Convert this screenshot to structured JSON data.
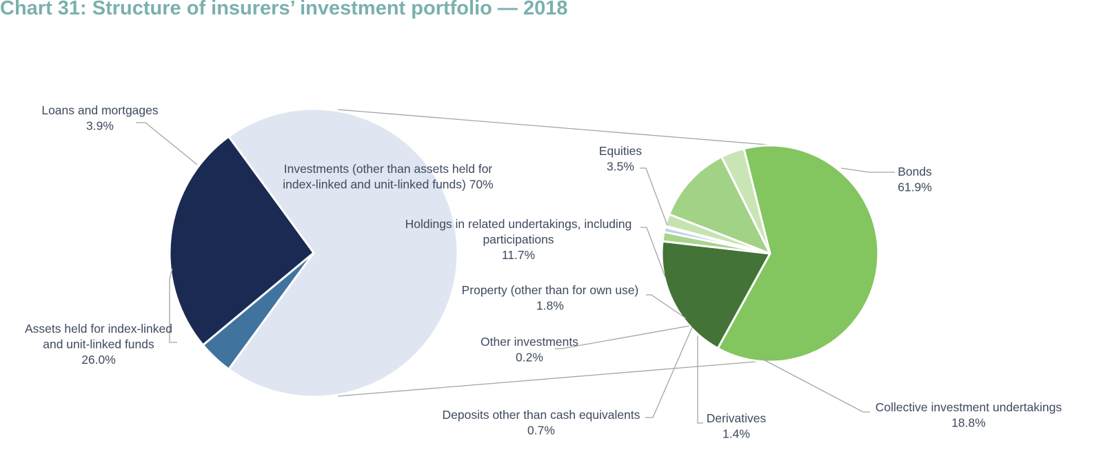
{
  "title": "Chart 31: Structure of insurers’ investment portfolio — 2018",
  "chart_data": [
    {
      "type": "pie",
      "name": "",
      "slices": [
        {
          "label_lines": [
            "Investments (other than assets held for",
            "index-linked and unit-linked funds)  70%"
          ],
          "value": 70.0,
          "color": "#dfe6f1"
        },
        {
          "label_lines": [
            "Assets held for index-linked",
            "and unit-linked funds",
            "26.0%"
          ],
          "value": 26.0,
          "color": "#1a2a52"
        },
        {
          "label_lines": [
            "Loans and mortgages",
            "3.9%"
          ],
          "value": 3.9,
          "color": "#41739f"
        }
      ]
    },
    {
      "type": "pie",
      "name": "",
      "slices": [
        {
          "label_lines": [
            "Bonds",
            "61.9%"
          ],
          "value": 61.9,
          "color": "#83c55f"
        },
        {
          "label_lines": [
            "Collective investment undertakings",
            "18.8%"
          ],
          "value": 18.8,
          "color": "#437336"
        },
        {
          "label_lines": [
            "Derivatives",
            "1.4%"
          ],
          "value": 1.4,
          "color": "#a8d48d"
        },
        {
          "label_lines": [
            "Deposits other than cash equivalents",
            "0.7%"
          ],
          "value": 0.7,
          "color": "#b9d0e8"
        },
        {
          "label_lines": [
            "Other investments",
            "0.2%"
          ],
          "value": 0.2,
          "color": "#7fa2c6"
        },
        {
          "label_lines": [
            "Property (other than for own use)",
            "1.8%"
          ],
          "value": 1.8,
          "color": "#c6e2b1"
        },
        {
          "label_lines": [
            "Holdings in related undertakings, including",
            "participations",
            "11.7%"
          ],
          "value": 11.7,
          "color": "#a2d286"
        },
        {
          "label_lines": [
            "Equities",
            "3.5%"
          ],
          "value": 3.5,
          "color": "#c9e5b6"
        }
      ]
    }
  ]
}
